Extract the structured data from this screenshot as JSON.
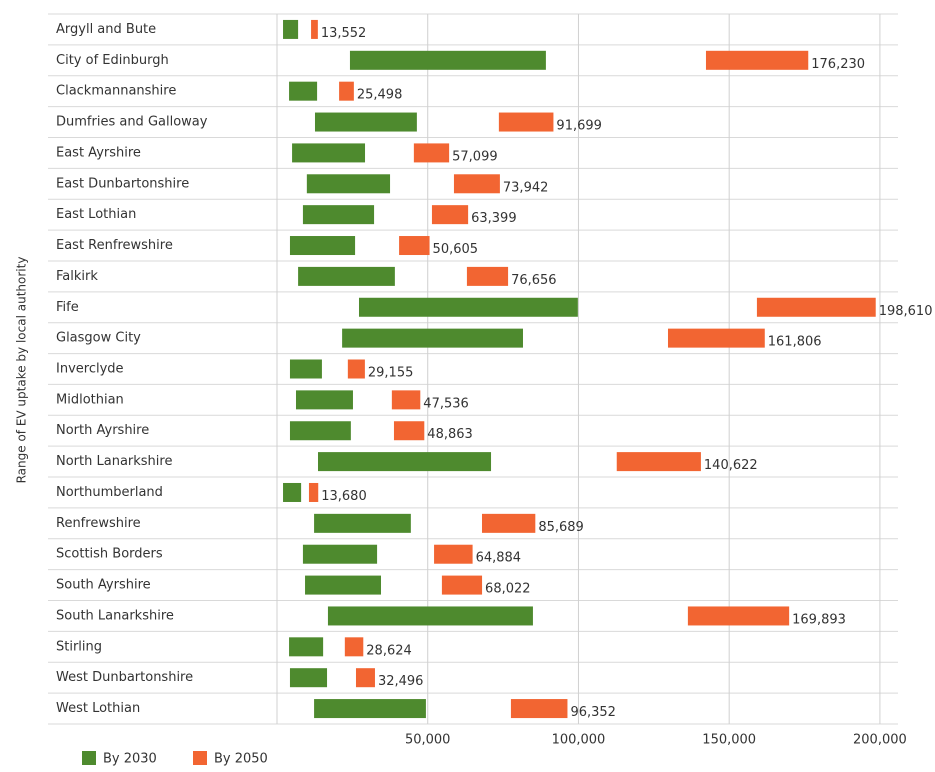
{
  "chart_data": {
    "type": "range-bar",
    "y_axis_label": "Range of EV uptake by local authority",
    "categories": [
      "Argyll and Bute",
      "City of Edinburgh",
      "Clackmannanshire",
      "Dumfries and Galloway",
      "East Ayrshire",
      "East Dunbartonshire",
      "East Lothian",
      "East Renfrewshire",
      "Falkirk",
      "Fife",
      "Glasgow City",
      "Inverclyde",
      "Midlothian",
      "North Ayrshire",
      "North Lanarkshire",
      "Northumberland",
      "Renfrewshire",
      "Scottish Borders",
      "South Ayrshire",
      "South Lanarkshire",
      "Stirling",
      "West Dunbartonshire",
      "West Lothian"
    ],
    "series": [
      {
        "name": "By 2030",
        "color": "#4e8a2e",
        "values": [
          [
            2000,
            7000
          ],
          [
            24200,
            89200
          ],
          [
            4000,
            13300
          ],
          [
            12600,
            46400
          ],
          [
            5000,
            29200
          ],
          [
            9900,
            37500
          ],
          [
            8600,
            32200
          ],
          [
            4300,
            25900
          ],
          [
            7000,
            39100
          ],
          [
            27200,
            99800
          ],
          [
            21600,
            81600
          ],
          [
            4300,
            14900
          ],
          [
            6300,
            25200
          ],
          [
            4300,
            24500
          ],
          [
            13600,
            71000
          ],
          [
            2000,
            8000
          ],
          [
            12300,
            44400
          ],
          [
            8600,
            33200
          ],
          [
            9300,
            34500
          ],
          [
            16900,
            84900
          ],
          [
            4000,
            15300
          ],
          [
            4300,
            16600
          ],
          [
            12300,
            49400
          ]
        ]
      },
      {
        "name": "By 2050",
        "color": "#f26532",
        "values": [
          [
            11300,
            13552
          ],
          [
            142300,
            176230
          ],
          [
            20600,
            25498
          ],
          [
            73600,
            91699
          ],
          [
            45400,
            57099
          ],
          [
            58700,
            73942
          ],
          [
            51400,
            63399
          ],
          [
            40500,
            50605
          ],
          [
            63000,
            76656
          ],
          [
            159200,
            198610
          ],
          [
            129700,
            161806
          ],
          [
            23500,
            29155
          ],
          [
            38100,
            47536
          ],
          [
            38800,
            48863
          ],
          [
            112700,
            140622
          ],
          [
            10600,
            13680
          ],
          [
            68000,
            85689
          ],
          [
            52100,
            64884
          ],
          [
            54700,
            68022
          ],
          [
            136300,
            169893
          ],
          [
            22500,
            28624
          ],
          [
            26200,
            32496
          ],
          [
            77600,
            96352
          ]
        ],
        "value_labels": [
          "13,552",
          "176,230",
          "25,498",
          "91,699",
          "57,099",
          "73,942",
          "63,399",
          "50,605",
          "76,656",
          "198,610",
          "161,806",
          "29,155",
          "47,536",
          "48,863",
          "140,622",
          "13,680",
          "85,689",
          "64,884",
          "68,022",
          "169,893",
          "28,624",
          "32,496",
          "96,352"
        ]
      }
    ],
    "xlim": [
      0,
      206000
    ],
    "xticks": [
      {
        "value": 50000,
        "label": "50,000"
      },
      {
        "value": 100000,
        "label": "100,000"
      },
      {
        "value": 150000,
        "label": "150,000"
      },
      {
        "value": 200000,
        "label": "200,000"
      }
    ],
    "grid": true
  }
}
